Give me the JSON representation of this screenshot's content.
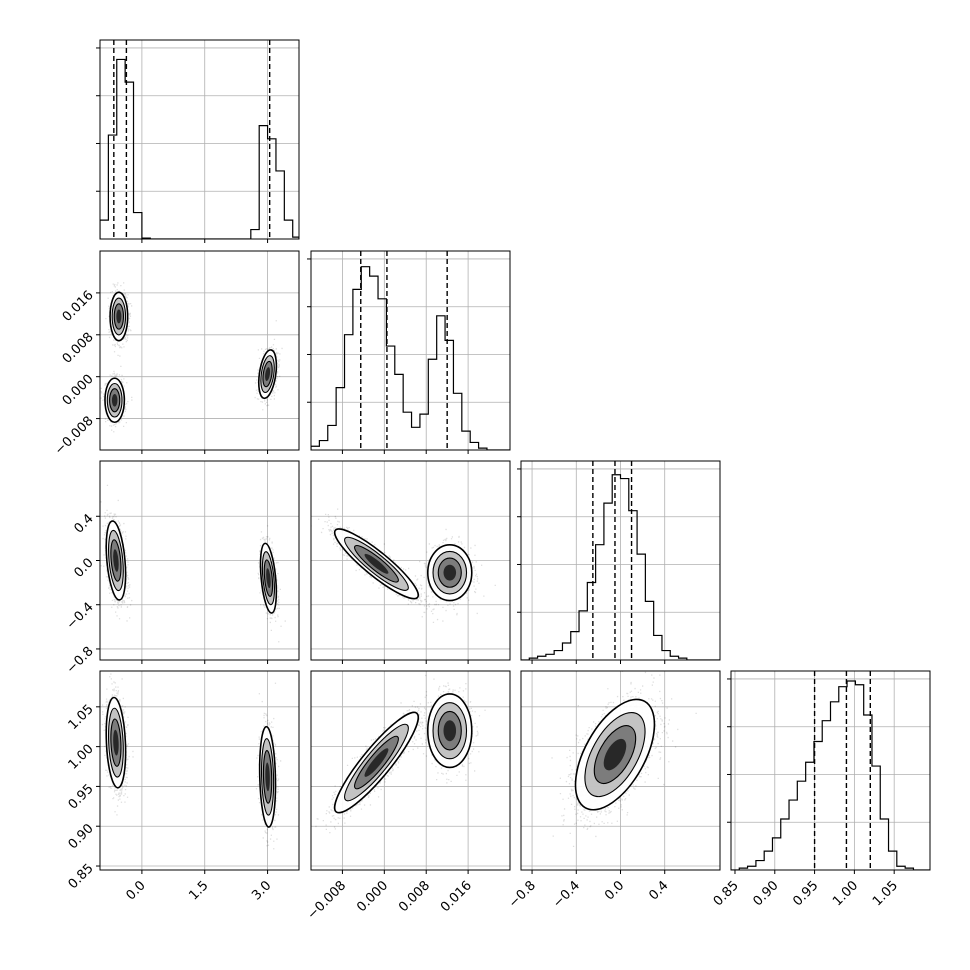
{
  "chart_data": {
    "type": "corner",
    "parameters": [
      "",
      "",
      "",
      ""
    ],
    "grid": true,
    "quantile_lines": "dashed",
    "ranges": [
      [
        -1.0,
        3.75
      ],
      [
        -0.014,
        0.024
      ],
      [
        -0.9,
        0.9
      ],
      [
        0.845,
        1.095
      ]
    ],
    "ticks": [
      {
        "values": [
          0.0,
          1.5,
          3.0
        ],
        "labels": [
          "0.0",
          "1.5",
          "3.0"
        ]
      },
      {
        "values": [
          -0.008,
          0.0,
          0.008,
          0.016
        ],
        "labels": [
          "−0.008",
          "0.000",
          "0.008",
          "0.016"
        ]
      },
      {
        "values": [
          -0.8,
          -0.4,
          0.0,
          0.4
        ],
        "labels": [
          "−0.8",
          "−0.4",
          "0.0",
          "0.4"
        ]
      },
      {
        "values": [
          0.85,
          0.9,
          0.95,
          1.0,
          1.05
        ],
        "labels": [
          "0.85",
          "0.90",
          "0.95",
          "1.00",
          "1.05"
        ]
      }
    ],
    "quantiles": [
      [
        -0.67,
        -0.37,
        3.05
      ],
      [
        -0.0045,
        0.0005,
        0.012
      ],
      [
        -0.25,
        -0.05,
        0.1
      ],
      [
        0.95,
        0.99,
        1.02
      ]
    ],
    "histograms": [
      {
        "edges": [
          -1.0,
          -0.8,
          -0.6,
          -0.4,
          -0.2,
          0.0,
          0.2,
          0.4,
          0.6,
          0.8,
          1.0,
          1.2,
          1.4,
          1.6,
          1.8,
          2.0,
          2.2,
          2.4,
          2.6,
          2.8,
          3.0,
          3.2,
          3.4,
          3.6,
          3.75
        ],
        "counts": [
          0.1,
          0.55,
          0.95,
          0.83,
          0.14,
          0.005,
          0,
          0,
          0,
          0,
          0,
          0,
          0,
          0,
          0,
          0,
          0,
          0,
          0.05,
          0.6,
          0.53,
          0.36,
          0.1,
          0.01
        ],
        "ymax": 1.0
      },
      {
        "edges": [
          -0.014,
          -0.0124,
          -0.0108,
          -0.0092,
          -0.0076,
          -0.006,
          -0.0044,
          -0.0028,
          -0.0012,
          0.0004,
          0.002,
          0.0036,
          0.0052,
          0.0068,
          0.0084,
          0.01,
          0.0116,
          0.0132,
          0.0148,
          0.0164,
          0.018,
          0.0196,
          0.0212,
          0.0228,
          0.024
        ],
        "counts": [
          0.02,
          0.05,
          0.13,
          0.33,
          0.61,
          0.85,
          0.97,
          0.92,
          0.8,
          0.55,
          0.4,
          0.2,
          0.12,
          0.19,
          0.48,
          0.71,
          0.58,
          0.3,
          0.1,
          0.04,
          0.01,
          0,
          0,
          0
        ],
        "ymax": 1.0
      },
      {
        "edges": [
          -0.9,
          -0.825,
          -0.75,
          -0.675,
          -0.6,
          -0.525,
          -0.45,
          -0.375,
          -0.3,
          -0.225,
          -0.15,
          -0.075,
          0.0,
          0.075,
          0.15,
          0.225,
          0.3,
          0.375,
          0.45,
          0.525,
          0.6,
          0.675,
          0.75,
          0.825,
          0.9
        ],
        "counts": [
          0,
          0.01,
          0.02,
          0.03,
          0.05,
          0.09,
          0.15,
          0.26,
          0.41,
          0.61,
          0.83,
          0.98,
          0.96,
          0.79,
          0.56,
          0.31,
          0.13,
          0.05,
          0.02,
          0.01,
          0,
          0,
          0,
          0
        ],
        "ymax": 1.0
      },
      {
        "edges": [
          0.845,
          0.8554,
          0.8658,
          0.8763,
          0.8867,
          0.8971,
          0.9075,
          0.9179,
          0.9283,
          0.9388,
          0.9492,
          0.9596,
          0.97,
          0.9804,
          0.9908,
          1.0013,
          1.0117,
          1.0221,
          1.0325,
          1.0429,
          1.0533,
          1.0638,
          1.0742,
          1.0846,
          1.095
        ],
        "counts": [
          0,
          0.01,
          0.02,
          0.05,
          0.1,
          0.17,
          0.27,
          0.37,
          0.47,
          0.57,
          0.68,
          0.79,
          0.89,
          0.97,
          1.0,
          0.98,
          0.82,
          0.55,
          0.27,
          0.1,
          0.02,
          0.01,
          0,
          0
        ],
        "ymax": 1.0
      }
    ],
    "pair_panels": [
      {
        "x_param": 0,
        "y_param": 1,
        "clusters": [
          {
            "weight": 0.38,
            "mean": [
              -0.55,
              0.0115
            ],
            "sd": [
              0.1,
              0.0022
            ],
            "rho": 0.0
          },
          {
            "weight": 0.3,
            "mean": [
              -0.65,
              -0.0045
            ],
            "sd": [
              0.11,
              0.002
            ],
            "rho": 0.0
          },
          {
            "weight": 0.32,
            "mean": [
              3.0,
              0.0005
            ],
            "sd": [
              0.1,
              0.0022
            ],
            "rho": 0.35
          }
        ]
      },
      {
        "x_param": 0,
        "y_param": 2,
        "clusters": [
          {
            "weight": 0.66,
            "mean": [
              -0.62,
              0.0
            ],
            "sd": [
              0.11,
              0.17
            ],
            "rho": -0.35
          },
          {
            "weight": 0.34,
            "mean": [
              3.02,
              -0.16
            ],
            "sd": [
              0.09,
              0.15
            ],
            "rho": -0.4
          }
        ]
      },
      {
        "x_param": 0,
        "y_param": 3,
        "clusters": [
          {
            "weight": 0.66,
            "mean": [
              -0.62,
              1.005
            ],
            "sd": [
              0.11,
              0.027
            ],
            "rho": -0.2
          },
          {
            "weight": 0.34,
            "mean": [
              3.0,
              0.962
            ],
            "sd": [
              0.09,
              0.03
            ],
            "rho": -0.15
          }
        ]
      },
      {
        "x_param": 1,
        "y_param": 2,
        "clusters": [
          {
            "weight": 0.66,
            "mean": [
              -0.0015,
              -0.03
            ],
            "sd": [
              0.0038,
              0.15
            ],
            "rho": -0.9
          },
          {
            "weight": 0.34,
            "mean": [
              0.0125,
              -0.11
            ],
            "sd": [
              0.002,
              0.12
            ],
            "rho": 0.0
          }
        ]
      },
      {
        "x_param": 1,
        "y_param": 3,
        "clusters": [
          {
            "weight": 0.66,
            "mean": [
              -0.0015,
              0.98
            ],
            "sd": [
              0.0038,
              0.03
            ],
            "rho": 0.9
          },
          {
            "weight": 0.34,
            "mean": [
              0.0125,
              1.02
            ],
            "sd": [
              0.002,
              0.022
            ],
            "rho": 0.0
          }
        ]
      },
      {
        "x_param": 2,
        "y_param": 3,
        "clusters": [
          {
            "weight": 1.0,
            "mean": [
              -0.05,
              0.99
            ],
            "sd": [
              0.17,
              0.033
            ],
            "rho": 0.55
          }
        ]
      }
    ]
  }
}
